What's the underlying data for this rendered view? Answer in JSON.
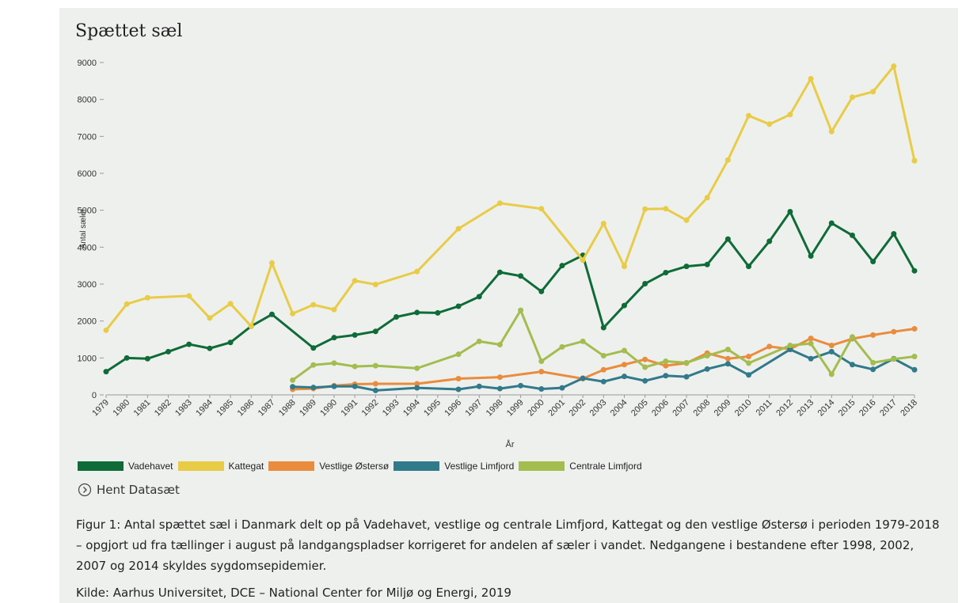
{
  "chart_data": {
    "type": "line",
    "title": "Spættet sæl",
    "ylabel": "Antal sæler",
    "xlabel": "År",
    "xlim": [
      1979,
      2018
    ],
    "xticks": [
      1979,
      1980,
      1981,
      1982,
      1983,
      1984,
      1985,
      1986,
      1987,
      1988,
      1989,
      1990,
      1991,
      1992,
      1993,
      1994,
      1995,
      1996,
      1997,
      1998,
      1999,
      2000,
      2001,
      2002,
      2003,
      2004,
      2005,
      2006,
      2007,
      2008,
      2009,
      2010,
      2011,
      2012,
      2013,
      2014,
      2015,
      2016,
      2017,
      2018
    ],
    "ylim": [
      0,
      9000
    ],
    "yticks": [
      0,
      1000,
      2000,
      3000,
      4000,
      5000,
      6000,
      7000,
      8000,
      9000
    ],
    "series": [
      {
        "name": "Vadehavet",
        "color": "#0f6b37",
        "x": [
          1979,
          1980,
          1981,
          1982,
          1983,
          1984,
          1985,
          1986,
          1987,
          1989,
          1990,
          1991,
          1992,
          1993,
          1994,
          1995,
          1996,
          1997,
          1998,
          1999,
          2000,
          2001,
          2002,
          2003,
          2004,
          2005,
          2006,
          2007,
          2008,
          2009,
          2010,
          2011,
          2012,
          2013,
          2014,
          2015,
          2016,
          2017,
          2018
        ],
        "values": [
          630,
          1000,
          980,
          1170,
          1370,
          1260,
          1420,
          1860,
          2180,
          1270,
          1550,
          1620,
          1720,
          2110,
          2230,
          2220,
          2400,
          2660,
          3320,
          3220,
          2800,
          3500,
          3780,
          1820,
          2420,
          3010,
          3310,
          3480,
          3530,
          4220,
          3480,
          4160,
          4960,
          3760,
          4650,
          4320,
          3610,
          4360,
          3360
        ]
      },
      {
        "name": "Kattegat",
        "color": "#e8cc45",
        "x": [
          1979,
          1980,
          1981,
          1983,
          1984,
          1985,
          1986,
          1987,
          1988,
          1989,
          1990,
          1991,
          1992,
          1994,
          1996,
          1998,
          2000,
          2002,
          2003,
          2004,
          2005,
          2006,
          2007,
          2008,
          2009,
          2010,
          2011,
          2012,
          2013,
          2014,
          2015,
          2016,
          2017,
          2018
        ],
        "values": [
          1750,
          2460,
          2630,
          2680,
          2080,
          2470,
          1860,
          3570,
          2200,
          2440,
          2310,
          3090,
          2990,
          3340,
          4500,
          5190,
          5040,
          3650,
          4640,
          3480,
          5030,
          5040,
          4730,
          5340,
          6360,
          7560,
          7330,
          7590,
          8560,
          7130,
          8060,
          8210,
          8900,
          6340
        ]
      },
      {
        "name": "Vestlige Østersø",
        "color": "#ea8c3c",
        "x": [
          1988,
          1989,
          1990,
          1991,
          1992,
          1994,
          1996,
          1998,
          2000,
          2002,
          2003,
          2004,
          2005,
          2006,
          2007,
          2008,
          2009,
          2010,
          2011,
          2012,
          2013,
          2014,
          2015,
          2016,
          2017,
          2018
        ],
        "values": [
          150,
          170,
          250,
          290,
          300,
          300,
          440,
          480,
          630,
          440,
          680,
          820,
          960,
          790,
          860,
          1130,
          980,
          1040,
          1310,
          1240,
          1530,
          1340,
          1520,
          1620,
          1710,
          1790
        ]
      },
      {
        "name": "Vestlige Limfjord",
        "color": "#317a8a",
        "x": [
          1988,
          1989,
          1990,
          1991,
          1992,
          1994,
          1996,
          1997,
          1998,
          1999,
          2000,
          2001,
          2002,
          2003,
          2004,
          2005,
          2006,
          2007,
          2008,
          2009,
          2010,
          2012,
          2013,
          2014,
          2015,
          2016,
          2017,
          2018
        ],
        "values": [
          220,
          200,
          230,
          230,
          120,
          190,
          150,
          230,
          170,
          250,
          160,
          190,
          450,
          360,
          500,
          380,
          520,
          490,
          700,
          840,
          540,
          1230,
          980,
          1170,
          820,
          690,
          980,
          680
        ]
      },
      {
        "name": "Centrale Limfjord",
        "color": "#a3bd4e",
        "x": [
          1988,
          1989,
          1990,
          1991,
          1992,
          1994,
          1996,
          1997,
          1998,
          1999,
          2000,
          2001,
          2002,
          2003,
          2004,
          2005,
          2006,
          2007,
          2008,
          2009,
          2010,
          2012,
          2013,
          2014,
          2015,
          2016,
          2017,
          2018
        ],
        "values": [
          400,
          810,
          860,
          770,
          790,
          720,
          1100,
          1450,
          1360,
          2290,
          910,
          1300,
          1450,
          1060,
          1200,
          750,
          910,
          870,
          1060,
          1230,
          860,
          1340,
          1390,
          560,
          1570,
          870,
          970,
          1040
        ]
      }
    ]
  },
  "download_label": "Hent Datasæt",
  "caption": "Figur 1: Antal spættet sæl i Danmark delt op på Vadehavet, vestlige og centrale Limfjord, Kattegat og den vestlige Østersø i perioden 1979-2018 – opgjort ud fra tællinger i august på landgangspladser korrigeret for andelen af sæler i vandet. Nedgangene i bestandene efter 1998, 2002, 2007 og 2014 skyldes sygdomsepidemier.",
  "source": "Kilde: Aarhus Universitet, DCE – National Center for Miljø og Energi, 2019"
}
